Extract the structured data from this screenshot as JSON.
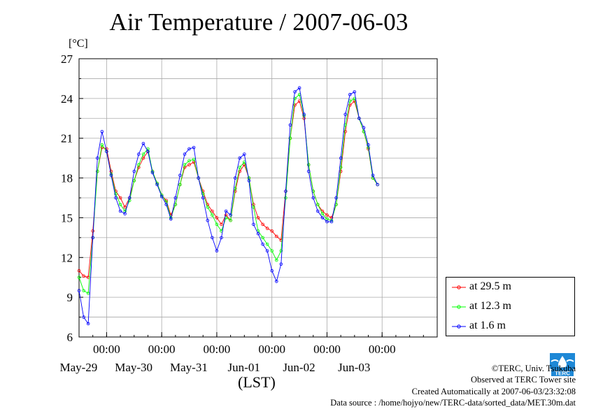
{
  "chart_data": {
    "type": "line",
    "title": "Air Temperature / 2007-06-03",
    "ylabel": "[°C]",
    "xlabel": "(LST)",
    "ylim": [
      6,
      27
    ],
    "yticks": [
      6,
      9,
      12,
      15,
      18,
      21,
      24,
      27
    ],
    "xlim": [
      "2007-05-28T12:00",
      "2007-06-04T00:00"
    ],
    "time_tick_label": "00:00",
    "time_ticks": [
      "2007-05-29T00:00",
      "2007-05-30T00:00",
      "2007-05-31T00:00",
      "2007-06-01T00:00",
      "2007-06-02T00:00",
      "2007-06-03T00:00"
    ],
    "date_labels": [
      {
        "label": "May-29",
        "at": "2007-05-29T00:00"
      },
      {
        "label": "May-30",
        "at": "2007-05-30T00:00"
      },
      {
        "label": "May-31",
        "at": "2007-05-31T00:00"
      },
      {
        "label": "Jun-01",
        "at": "2007-06-01T00:00"
      },
      {
        "label": "Jun-02",
        "at": "2007-06-02T00:00"
      },
      {
        "label": "Jun-03",
        "at": "2007-06-03T00:00"
      }
    ],
    "grid": true,
    "legend_position": "bottom-right, outside plot",
    "series": [
      {
        "name": "at 29.5 m",
        "color": "#ff0000",
        "points": [
          [
            "2007-05-28T12:00",
            11.0
          ],
          [
            "2007-05-28T14:00",
            10.6
          ],
          [
            "2007-05-28T16:00",
            10.5
          ],
          [
            "2007-05-28T18:00",
            14.0
          ],
          [
            "2007-05-28T20:00",
            18.5
          ],
          [
            "2007-05-28T22:00",
            20.3
          ],
          [
            "2007-05-29T00:00",
            20.2
          ],
          [
            "2007-05-29T02:00",
            18.5
          ],
          [
            "2007-05-29T04:00",
            17.0
          ],
          [
            "2007-05-29T06:00",
            16.5
          ],
          [
            "2007-05-29T08:00",
            15.8
          ],
          [
            "2007-05-29T10:00",
            16.5
          ],
          [
            "2007-05-29T12:00",
            17.8
          ],
          [
            "2007-05-29T14:00",
            18.8
          ],
          [
            "2007-05-29T16:00",
            19.5
          ],
          [
            "2007-05-29T18:00",
            20.0
          ],
          [
            "2007-05-29T20:00",
            18.5
          ],
          [
            "2007-05-29T22:00",
            17.6
          ],
          [
            "2007-05-30T00:00",
            16.7
          ],
          [
            "2007-05-30T02:00",
            16.3
          ],
          [
            "2007-05-30T04:00",
            15.2
          ],
          [
            "2007-05-30T06:00",
            16.0
          ],
          [
            "2007-05-30T08:00",
            17.5
          ],
          [
            "2007-05-30T10:00",
            18.8
          ],
          [
            "2007-05-30T12:00",
            19.0
          ],
          [
            "2007-05-30T14:00",
            19.2
          ],
          [
            "2007-05-30T16:00",
            18.0
          ],
          [
            "2007-05-30T18:00",
            17.0
          ],
          [
            "2007-05-30T20:00",
            16.0
          ],
          [
            "2007-05-30T22:00",
            15.5
          ],
          [
            "2007-05-31T00:00",
            15.0
          ],
          [
            "2007-05-31T02:00",
            14.5
          ],
          [
            "2007-05-31T04:00",
            15.2
          ],
          [
            "2007-05-31T06:00",
            14.8
          ],
          [
            "2007-05-31T08:00",
            17.0
          ],
          [
            "2007-05-31T10:00",
            18.5
          ],
          [
            "2007-05-31T12:00",
            19.0
          ],
          [
            "2007-05-31T14:00",
            18.0
          ],
          [
            "2007-05-31T16:00",
            16.0
          ],
          [
            "2007-05-31T18:00",
            15.0
          ],
          [
            "2007-05-31T20:00",
            14.5
          ],
          [
            "2007-05-31T22:00",
            14.2
          ],
          [
            "2007-06-01T00:00",
            14.0
          ],
          [
            "2007-06-01T02:00",
            13.6
          ],
          [
            "2007-06-01T04:00",
            13.3
          ],
          [
            "2007-06-01T06:00",
            17.0
          ],
          [
            "2007-06-01T08:00",
            21.0
          ],
          [
            "2007-06-01T10:00",
            23.5
          ],
          [
            "2007-06-01T12:00",
            23.8
          ],
          [
            "2007-06-01T14:00",
            22.5
          ],
          [
            "2007-06-01T16:00",
            19.0
          ],
          [
            "2007-06-01T18:00",
            17.0
          ],
          [
            "2007-06-01T20:00",
            16.0
          ],
          [
            "2007-06-01T22:00",
            15.5
          ],
          [
            "2007-06-02T00:00",
            15.2
          ],
          [
            "2007-06-02T02:00",
            15.0
          ],
          [
            "2007-06-02T04:00",
            16.0
          ],
          [
            "2007-06-02T06:00",
            18.5
          ],
          [
            "2007-06-02T08:00",
            21.5
          ],
          [
            "2007-06-02T10:00",
            23.5
          ],
          [
            "2007-06-02T12:00",
            23.8
          ],
          [
            "2007-06-02T14:00",
            22.5
          ],
          [
            "2007-06-02T16:00",
            21.5
          ],
          [
            "2007-06-02T18:00",
            20.2
          ],
          [
            "2007-06-02T20:00",
            18.0
          ],
          [
            "2007-06-02T22:00",
            17.5
          ]
        ]
      },
      {
        "name": "at 12.3 m",
        "color": "#00ff00",
        "points": [
          [
            "2007-05-28T12:00",
            10.5
          ],
          [
            "2007-05-28T14:00",
            9.5
          ],
          [
            "2007-05-28T16:00",
            9.3
          ],
          [
            "2007-05-28T18:00",
            13.5
          ],
          [
            "2007-05-28T20:00",
            18.5
          ],
          [
            "2007-05-28T22:00",
            20.5
          ],
          [
            "2007-05-29T00:00",
            20.0
          ],
          [
            "2007-05-29T02:00",
            18.3
          ],
          [
            "2007-05-29T04:00",
            16.8
          ],
          [
            "2007-05-29T06:00",
            16.0
          ],
          [
            "2007-05-29T08:00",
            15.5
          ],
          [
            "2007-05-29T10:00",
            16.3
          ],
          [
            "2007-05-29T12:00",
            17.8
          ],
          [
            "2007-05-29T14:00",
            19.0
          ],
          [
            "2007-05-29T16:00",
            19.8
          ],
          [
            "2007-05-29T18:00",
            20.2
          ],
          [
            "2007-05-29T20:00",
            18.5
          ],
          [
            "2007-05-29T22:00",
            17.6
          ],
          [
            "2007-05-30T00:00",
            16.7
          ],
          [
            "2007-05-30T02:00",
            16.2
          ],
          [
            "2007-05-30T04:00",
            15.0
          ],
          [
            "2007-05-30T06:00",
            16.0
          ],
          [
            "2007-05-30T08:00",
            17.5
          ],
          [
            "2007-05-30T10:00",
            19.0
          ],
          [
            "2007-05-30T12:00",
            19.3
          ],
          [
            "2007-05-30T14:00",
            19.4
          ],
          [
            "2007-05-30T16:00",
            18.0
          ],
          [
            "2007-05-30T18:00",
            16.8
          ],
          [
            "2007-05-30T20:00",
            15.8
          ],
          [
            "2007-05-30T22:00",
            15.2
          ],
          [
            "2007-05-31T00:00",
            14.5
          ],
          [
            "2007-05-31T02:00",
            14.0
          ],
          [
            "2007-05-31T04:00",
            15.0
          ],
          [
            "2007-05-31T06:00",
            14.8
          ],
          [
            "2007-05-31T08:00",
            17.2
          ],
          [
            "2007-05-31T10:00",
            18.8
          ],
          [
            "2007-05-31T12:00",
            19.2
          ],
          [
            "2007-05-31T14:00",
            18.0
          ],
          [
            "2007-05-31T16:00",
            15.8
          ],
          [
            "2007-05-31T18:00",
            14.0
          ],
          [
            "2007-05-31T20:00",
            13.5
          ],
          [
            "2007-05-31T22:00",
            13.0
          ],
          [
            "2007-06-01T00:00",
            12.5
          ],
          [
            "2007-06-01T02:00",
            11.8
          ],
          [
            "2007-06-01T04:00",
            12.5
          ],
          [
            "2007-06-01T06:00",
            16.5
          ],
          [
            "2007-06-01T08:00",
            21.0
          ],
          [
            "2007-06-01T10:00",
            24.0
          ],
          [
            "2007-06-01T12:00",
            24.3
          ],
          [
            "2007-06-01T14:00",
            22.7
          ],
          [
            "2007-06-01T16:00",
            19.0
          ],
          [
            "2007-06-01T18:00",
            17.0
          ],
          [
            "2007-06-01T20:00",
            16.0
          ],
          [
            "2007-06-01T22:00",
            15.3
          ],
          [
            "2007-06-02T00:00",
            14.9
          ],
          [
            "2007-06-02T02:00",
            14.8
          ],
          [
            "2007-06-02T04:00",
            16.0
          ],
          [
            "2007-06-02T06:00",
            18.8
          ],
          [
            "2007-06-02T08:00",
            22.0
          ],
          [
            "2007-06-02T10:00",
            23.8
          ],
          [
            "2007-06-02T12:00",
            24.0
          ],
          [
            "2007-06-02T14:00",
            22.5
          ],
          [
            "2007-06-02T16:00",
            21.5
          ],
          [
            "2007-06-02T18:00",
            20.3
          ],
          [
            "2007-06-02T20:00",
            18.0
          ],
          [
            "2007-06-02T22:00",
            17.5
          ]
        ]
      },
      {
        "name": "at 1.6 m",
        "color": "#0000ff",
        "points": [
          [
            "2007-05-28T12:00",
            9.5
          ],
          [
            "2007-05-28T14:00",
            7.5
          ],
          [
            "2007-05-28T16:00",
            7.0
          ],
          [
            "2007-05-28T18:00",
            13.5
          ],
          [
            "2007-05-28T20:00",
            19.5
          ],
          [
            "2007-05-28T22:00",
            21.5
          ],
          [
            "2007-05-29T00:00",
            20.0
          ],
          [
            "2007-05-29T02:00",
            18.2
          ],
          [
            "2007-05-29T04:00",
            16.5
          ],
          [
            "2007-05-29T06:00",
            15.5
          ],
          [
            "2007-05-29T08:00",
            15.3
          ],
          [
            "2007-05-29T10:00",
            16.5
          ],
          [
            "2007-05-29T12:00",
            18.5
          ],
          [
            "2007-05-29T14:00",
            19.8
          ],
          [
            "2007-05-29T16:00",
            20.6
          ],
          [
            "2007-05-29T18:00",
            20.0
          ],
          [
            "2007-05-29T20:00",
            18.4
          ],
          [
            "2007-05-29T22:00",
            17.5
          ],
          [
            "2007-05-30T00:00",
            16.6
          ],
          [
            "2007-05-30T02:00",
            16.0
          ],
          [
            "2007-05-30T04:00",
            14.9
          ],
          [
            "2007-05-30T06:00",
            16.5
          ],
          [
            "2007-05-30T08:00",
            18.2
          ],
          [
            "2007-05-30T10:00",
            19.8
          ],
          [
            "2007-05-30T12:00",
            20.2
          ],
          [
            "2007-05-30T14:00",
            20.3
          ],
          [
            "2007-05-30T16:00",
            18.0
          ],
          [
            "2007-05-30T18:00",
            16.5
          ],
          [
            "2007-05-30T20:00",
            14.8
          ],
          [
            "2007-05-30T22:00",
            13.5
          ],
          [
            "2007-05-31T00:00",
            12.5
          ],
          [
            "2007-05-31T02:00",
            13.5
          ],
          [
            "2007-05-31T04:00",
            15.5
          ],
          [
            "2007-05-31T06:00",
            15.2
          ],
          [
            "2007-05-31T08:00",
            18.0
          ],
          [
            "2007-05-31T10:00",
            19.5
          ],
          [
            "2007-05-31T12:00",
            19.8
          ],
          [
            "2007-05-31T14:00",
            17.8
          ],
          [
            "2007-05-31T16:00",
            14.5
          ],
          [
            "2007-05-31T18:00",
            13.8
          ],
          [
            "2007-05-31T20:00",
            13.0
          ],
          [
            "2007-05-31T22:00",
            12.5
          ],
          [
            "2007-06-01T00:00",
            11.0
          ],
          [
            "2007-06-01T02:00",
            10.2
          ],
          [
            "2007-06-01T04:00",
            11.5
          ],
          [
            "2007-06-01T06:00",
            17.0
          ],
          [
            "2007-06-01T08:00",
            22.0
          ],
          [
            "2007-06-01T10:00",
            24.5
          ],
          [
            "2007-06-01T12:00",
            24.8
          ],
          [
            "2007-06-01T14:00",
            22.8
          ],
          [
            "2007-06-01T16:00",
            18.5
          ],
          [
            "2007-06-01T18:00",
            16.5
          ],
          [
            "2007-06-01T20:00",
            15.5
          ],
          [
            "2007-06-01T22:00",
            15.0
          ],
          [
            "2007-06-02T00:00",
            14.7
          ],
          [
            "2007-06-02T02:00",
            14.7
          ],
          [
            "2007-06-02T04:00",
            16.5
          ],
          [
            "2007-06-02T06:00",
            19.5
          ],
          [
            "2007-06-02T08:00",
            22.8
          ],
          [
            "2007-06-02T10:00",
            24.3
          ],
          [
            "2007-06-02T12:00",
            24.5
          ],
          [
            "2007-06-02T14:00",
            22.5
          ],
          [
            "2007-06-02T16:00",
            21.8
          ],
          [
            "2007-06-02T18:00",
            20.5
          ],
          [
            "2007-06-02T20:00",
            18.2
          ],
          [
            "2007-06-02T22:00",
            17.5
          ]
        ]
      }
    ]
  },
  "footer": {
    "copyright": "©TERC, Univ. Tsukuba",
    "observed": "Observed at TERC Tower site",
    "created": "Created Automatically at 2007-06-03​/23:32:08",
    "source": "Data source : /home/hojyo/new/TERC-data/sorted_data/MET.30m.dat"
  },
  "logo": {
    "icon": "terc-logo-icon",
    "text": "TERC",
    "color": "#1e88d6"
  }
}
